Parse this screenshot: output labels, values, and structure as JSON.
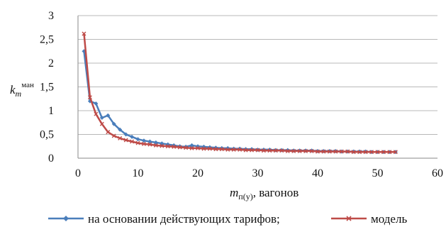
{
  "chart_data": {
    "type": "line",
    "xlabel": {
      "main": "m",
      "sub": "п(у)",
      "suffix": ", вагонов"
    },
    "ylabel": {
      "main": "k",
      "sub": "m",
      "sup": "ман"
    },
    "xlim": [
      0,
      60
    ],
    "ylim": [
      0,
      3
    ],
    "xticks": [
      "0",
      "10",
      "20",
      "30",
      "40",
      "50",
      "60"
    ],
    "yticks": [
      "0",
      "0,5",
      "1",
      "1,5",
      "2",
      "2,5",
      "3"
    ],
    "grid": "horizontal",
    "legend_position": "bottom",
    "series": [
      {
        "name": "на основании действующих тарифов;",
        "color": "#4a7ebb",
        "marker": "diamond",
        "x": [
          1,
          2,
          3,
          4,
          5,
          6,
          7,
          8,
          9,
          10,
          11,
          12,
          13,
          14,
          15,
          16,
          17,
          18,
          19,
          20,
          21,
          22,
          23,
          24,
          25,
          26,
          27,
          28,
          29,
          30,
          31,
          32,
          33,
          34,
          35,
          36,
          37,
          38,
          39,
          40,
          41,
          42,
          43,
          44,
          45,
          46,
          47,
          48,
          49,
          50,
          51,
          52,
          53
        ],
        "y": [
          2.25,
          1.2,
          1.15,
          0.85,
          0.9,
          0.72,
          0.6,
          0.5,
          0.45,
          0.4,
          0.37,
          0.35,
          0.33,
          0.31,
          0.29,
          0.27,
          0.25,
          0.24,
          0.27,
          0.25,
          0.24,
          0.23,
          0.22,
          0.21,
          0.21,
          0.2,
          0.2,
          0.19,
          0.19,
          0.18,
          0.18,
          0.18,
          0.17,
          0.17,
          0.17,
          0.16,
          0.16,
          0.16,
          0.16,
          0.15,
          0.15,
          0.15,
          0.15,
          0.14,
          0.14,
          0.14,
          0.14,
          0.14,
          0.13,
          0.13,
          0.13,
          0.13,
          0.13
        ]
      },
      {
        "name": "модель",
        "color": "#be4b48",
        "marker": "x",
        "x": [
          1,
          2,
          3,
          4,
          5,
          6,
          7,
          8,
          9,
          10,
          11,
          12,
          13,
          14,
          15,
          16,
          17,
          18,
          19,
          20,
          21,
          22,
          23,
          24,
          25,
          26,
          27,
          28,
          29,
          30,
          31,
          32,
          33,
          34,
          35,
          36,
          37,
          38,
          39,
          40,
          41,
          42,
          43,
          44,
          45,
          46,
          47,
          48,
          49,
          50,
          51,
          52,
          53
        ],
        "y": [
          2.62,
          1.28,
          0.93,
          0.72,
          0.55,
          0.47,
          0.42,
          0.38,
          0.35,
          0.32,
          0.3,
          0.29,
          0.27,
          0.26,
          0.25,
          0.24,
          0.23,
          0.22,
          0.21,
          0.21,
          0.2,
          0.2,
          0.19,
          0.19,
          0.18,
          0.18,
          0.18,
          0.17,
          0.17,
          0.17,
          0.16,
          0.16,
          0.16,
          0.16,
          0.15,
          0.15,
          0.15,
          0.15,
          0.15,
          0.14,
          0.14,
          0.14,
          0.14,
          0.14,
          0.14,
          0.13,
          0.13,
          0.13,
          0.13,
          0.13,
          0.13,
          0.13,
          0.13
        ]
      }
    ]
  }
}
